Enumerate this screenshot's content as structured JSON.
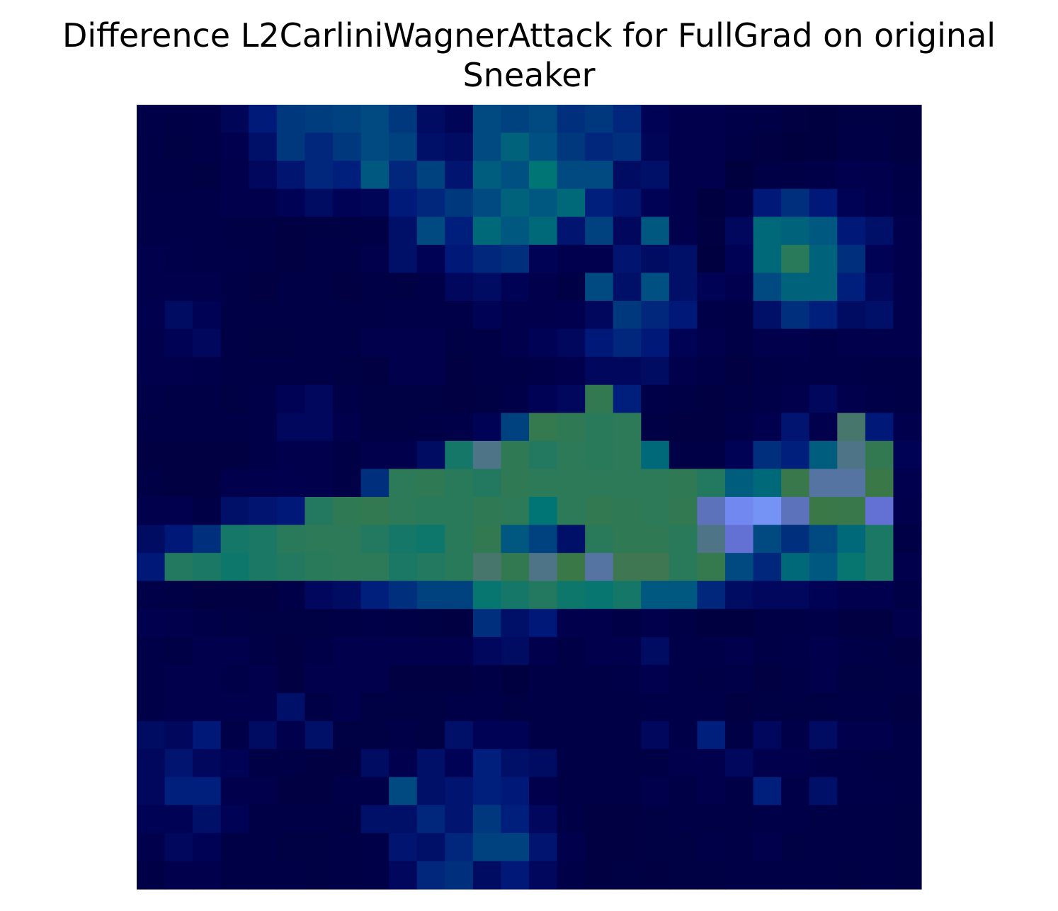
{
  "chart_data": {
    "type": "heatmap",
    "title_line1": "Difference L2CarliniWagnerAttack for FullGrad on original",
    "title_line2": "Sneaker",
    "xlabel": "",
    "ylabel": "",
    "axes": "off",
    "rows": 28,
    "cols": 28,
    "palette": [
      "#00003c",
      "#000050",
      "#001a7a",
      "#005082",
      "#007575",
      "#2a7a5a",
      "#3c7846",
      "#6870e8",
      "#80b4ff"
    ],
    "note_values": "each cell value in 0..1 maps along the palette",
    "values": [
      [
        0.08,
        0.06,
        0.08,
        0.15,
        0.25,
        0.32,
        0.33,
        0.34,
        0.36,
        0.32,
        0.18,
        0.15,
        0.36,
        0.34,
        0.36,
        0.3,
        0.32,
        0.28,
        0.14,
        0.1,
        0.1,
        0.08,
        0.06,
        0.04,
        0.03,
        0.05,
        0.05,
        0.04
      ],
      [
        0.07,
        0.05,
        0.08,
        0.12,
        0.2,
        0.32,
        0.28,
        0.32,
        0.36,
        0.34,
        0.2,
        0.18,
        0.36,
        0.44,
        0.38,
        0.32,
        0.28,
        0.3,
        0.15,
        0.1,
        0.1,
        0.06,
        0.04,
        0.02,
        0.03,
        0.06,
        0.06,
        0.04
      ],
      [
        0.06,
        0.07,
        0.05,
        0.1,
        0.16,
        0.22,
        0.28,
        0.26,
        0.4,
        0.28,
        0.34,
        0.22,
        0.42,
        0.38,
        0.5,
        0.36,
        0.36,
        0.18,
        0.2,
        0.1,
        0.1,
        0.02,
        0.06,
        0.07,
        0.08,
        0.12,
        0.1,
        0.06
      ],
      [
        0.08,
        0.08,
        0.08,
        0.1,
        0.1,
        0.14,
        0.18,
        0.14,
        0.15,
        0.25,
        0.28,
        0.32,
        0.36,
        0.44,
        0.4,
        0.46,
        0.26,
        0.22,
        0.14,
        0.1,
        0.03,
        0.08,
        0.24,
        0.3,
        0.24,
        0.14,
        0.12,
        0.08
      ],
      [
        0.08,
        0.08,
        0.08,
        0.06,
        0.06,
        0.04,
        0.05,
        0.05,
        0.06,
        0.2,
        0.36,
        0.26,
        0.46,
        0.4,
        0.46,
        0.22,
        0.34,
        0.16,
        0.4,
        0.1,
        0.04,
        0.16,
        0.46,
        0.44,
        0.4,
        0.24,
        0.2,
        0.1
      ],
      [
        0.1,
        0.09,
        0.08,
        0.08,
        0.06,
        0.04,
        0.06,
        0.06,
        0.1,
        0.2,
        0.14,
        0.24,
        0.28,
        0.3,
        0.14,
        0.12,
        0.12,
        0.22,
        0.18,
        0.2,
        0.03,
        0.14,
        0.46,
        0.62,
        0.44,
        0.3,
        0.14,
        0.1
      ],
      [
        0.1,
        0.1,
        0.1,
        0.07,
        0.04,
        0.06,
        0.06,
        0.04,
        0.06,
        0.05,
        0.08,
        0.16,
        0.18,
        0.14,
        0.1,
        0.06,
        0.36,
        0.2,
        0.38,
        0.2,
        0.14,
        0.12,
        0.36,
        0.44,
        0.44,
        0.26,
        0.16,
        0.1
      ],
      [
        0.12,
        0.18,
        0.14,
        0.07,
        0.07,
        0.06,
        0.06,
        0.07,
        0.06,
        0.08,
        0.08,
        0.08,
        0.14,
        0.1,
        0.1,
        0.12,
        0.16,
        0.32,
        0.28,
        0.24,
        0.08,
        0.06,
        0.2,
        0.3,
        0.26,
        0.18,
        0.2,
        0.1
      ],
      [
        0.1,
        0.14,
        0.16,
        0.06,
        0.05,
        0.05,
        0.06,
        0.06,
        0.1,
        0.1,
        0.1,
        0.05,
        0.06,
        0.1,
        0.14,
        0.16,
        0.24,
        0.28,
        0.24,
        0.14,
        0.1,
        0.06,
        0.1,
        0.1,
        0.08,
        0.1,
        0.1,
        0.1
      ],
      [
        0.1,
        0.1,
        0.09,
        0.07,
        0.06,
        0.06,
        0.06,
        0.05,
        0.04,
        0.1,
        0.1,
        0.04,
        0.06,
        0.07,
        0.08,
        0.1,
        0.16,
        0.16,
        0.18,
        0.1,
        0.08,
        0.04,
        0.07,
        0.08,
        0.08,
        0.08,
        0.06,
        0.06
      ],
      [
        0.08,
        0.06,
        0.06,
        0.05,
        0.08,
        0.14,
        0.16,
        0.08,
        0.05,
        0.05,
        0.05,
        0.04,
        0.05,
        0.08,
        0.14,
        0.16,
        0.68,
        0.26,
        0.08,
        0.07,
        0.04,
        0.06,
        0.08,
        0.1,
        0.16,
        0.1,
        0.08,
        0.06
      ],
      [
        0.06,
        0.06,
        0.06,
        0.06,
        0.08,
        0.16,
        0.16,
        0.1,
        0.05,
        0.05,
        0.06,
        0.08,
        0.14,
        0.34,
        0.7,
        0.66,
        0.62,
        0.64,
        0.06,
        0.04,
        0.04,
        0.08,
        0.12,
        0.22,
        0.1,
        0.78,
        0.24,
        0.1
      ],
      [
        0.04,
        0.04,
        0.04,
        0.04,
        0.08,
        0.1,
        0.1,
        0.06,
        0.1,
        0.1,
        0.18,
        0.56,
        0.8,
        0.66,
        0.6,
        0.64,
        0.62,
        0.64,
        0.46,
        0.06,
        0.06,
        0.14,
        0.3,
        0.26,
        0.42,
        0.8,
        0.68,
        0.14
      ],
      [
        0.06,
        0.04,
        0.04,
        0.1,
        0.1,
        0.12,
        0.1,
        0.06,
        0.3,
        0.64,
        0.66,
        0.62,
        0.6,
        0.66,
        0.64,
        0.64,
        0.64,
        0.64,
        0.64,
        0.66,
        0.6,
        0.42,
        0.46,
        0.72,
        0.82,
        0.82,
        0.74,
        0.12
      ],
      [
        0.1,
        0.12,
        0.06,
        0.2,
        0.22,
        0.24,
        0.6,
        0.66,
        0.68,
        0.64,
        0.62,
        0.62,
        0.66,
        0.64,
        0.5,
        0.64,
        0.68,
        0.66,
        0.64,
        0.68,
        0.84,
        0.92,
        0.94,
        0.84,
        0.74,
        0.72,
        0.86,
        0.1
      ],
      [
        0.18,
        0.24,
        0.3,
        0.56,
        0.58,
        0.62,
        0.64,
        0.64,
        0.6,
        0.56,
        0.54,
        0.62,
        0.68,
        0.4,
        0.34,
        0.2,
        0.62,
        0.66,
        0.66,
        0.62,
        0.8,
        0.86,
        0.36,
        0.3,
        0.36,
        0.46,
        0.58,
        0.06
      ],
      [
        0.24,
        0.6,
        0.58,
        0.54,
        0.58,
        0.6,
        0.62,
        0.64,
        0.64,
        0.58,
        0.6,
        0.62,
        0.78,
        0.68,
        0.8,
        0.74,
        0.82,
        0.76,
        0.76,
        0.62,
        0.7,
        0.36,
        0.28,
        0.46,
        0.4,
        0.52,
        0.58,
        0.1
      ],
      [
        0.08,
        0.06,
        0.04,
        0.04,
        0.04,
        0.08,
        0.16,
        0.18,
        0.26,
        0.3,
        0.34,
        0.34,
        0.52,
        0.56,
        0.6,
        0.54,
        0.52,
        0.56,
        0.4,
        0.4,
        0.28,
        0.18,
        0.16,
        0.16,
        0.14,
        0.12,
        0.12,
        0.06
      ],
      [
        0.12,
        0.1,
        0.08,
        0.06,
        0.05,
        0.05,
        0.05,
        0.06,
        0.08,
        0.06,
        0.05,
        0.04,
        0.3,
        0.2,
        0.24,
        0.1,
        0.1,
        0.06,
        0.1,
        0.06,
        0.03,
        0.03,
        0.06,
        0.06,
        0.08,
        0.04,
        0.04,
        0.1
      ],
      [
        0.08,
        0.06,
        0.1,
        0.1,
        0.06,
        0.04,
        0.08,
        0.1,
        0.1,
        0.1,
        0.1,
        0.1,
        0.16,
        0.18,
        0.1,
        0.06,
        0.1,
        0.1,
        0.18,
        0.08,
        0.08,
        0.1,
        0.06,
        0.08,
        0.1,
        0.08,
        0.06,
        0.04
      ],
      [
        0.08,
        0.1,
        0.1,
        0.08,
        0.1,
        0.04,
        0.1,
        0.1,
        0.1,
        0.04,
        0.04,
        0.04,
        0.06,
        0.03,
        0.06,
        0.06,
        0.06,
        0.08,
        0.12,
        0.08,
        0.06,
        0.08,
        0.04,
        0.06,
        0.1,
        0.05,
        0.05,
        0.06
      ],
      [
        0.08,
        0.1,
        0.1,
        0.1,
        0.1,
        0.2,
        0.06,
        0.1,
        0.05,
        0.05,
        0.05,
        0.08,
        0.08,
        0.05,
        0.06,
        0.06,
        0.06,
        0.07,
        0.08,
        0.08,
        0.08,
        0.04,
        0.05,
        0.05,
        0.05,
        0.06,
        0.06,
        0.04
      ],
      [
        0.18,
        0.16,
        0.24,
        0.08,
        0.18,
        0.1,
        0.2,
        0.05,
        0.05,
        0.08,
        0.05,
        0.2,
        0.14,
        0.14,
        0.06,
        0.06,
        0.06,
        0.06,
        0.16,
        0.08,
        0.26,
        0.06,
        0.16,
        0.08,
        0.18,
        0.1,
        0.1,
        0.06
      ],
      [
        0.16,
        0.22,
        0.16,
        0.14,
        0.06,
        0.06,
        0.04,
        0.04,
        0.18,
        0.12,
        0.2,
        0.14,
        0.26,
        0.2,
        0.18,
        0.06,
        0.06,
        0.06,
        0.06,
        0.1,
        0.1,
        0.16,
        0.1,
        0.1,
        0.08,
        0.08,
        0.06,
        0.06
      ],
      [
        0.16,
        0.26,
        0.26,
        0.1,
        0.1,
        0.04,
        0.04,
        0.08,
        0.08,
        0.36,
        0.2,
        0.22,
        0.26,
        0.24,
        0.1,
        0.06,
        0.06,
        0.06,
        0.1,
        0.06,
        0.1,
        0.06,
        0.26,
        0.08,
        0.2,
        0.08,
        0.08,
        0.06
      ],
      [
        0.14,
        0.14,
        0.2,
        0.14,
        0.06,
        0.06,
        0.06,
        0.05,
        0.2,
        0.2,
        0.28,
        0.22,
        0.32,
        0.26,
        0.16,
        0.06,
        0.04,
        0.04,
        0.05,
        0.06,
        0.06,
        0.06,
        0.08,
        0.08,
        0.06,
        0.06,
        0.06,
        0.05
      ],
      [
        0.1,
        0.16,
        0.14,
        0.06,
        0.06,
        0.05,
        0.05,
        0.06,
        0.08,
        0.22,
        0.2,
        0.28,
        0.34,
        0.34,
        0.22,
        0.1,
        0.04,
        0.04,
        0.05,
        0.05,
        0.08,
        0.06,
        0.1,
        0.05,
        0.06,
        0.06,
        0.06,
        0.05
      ],
      [
        0.06,
        0.1,
        0.1,
        0.06,
        0.06,
        0.06,
        0.05,
        0.06,
        0.08,
        0.16,
        0.28,
        0.3,
        0.18,
        0.24,
        0.16,
        0.08,
        0.04,
        0.05,
        0.04,
        0.05,
        0.05,
        0.06,
        0.06,
        0.06,
        0.06,
        0.05,
        0.06,
        0.05
      ]
    ]
  }
}
